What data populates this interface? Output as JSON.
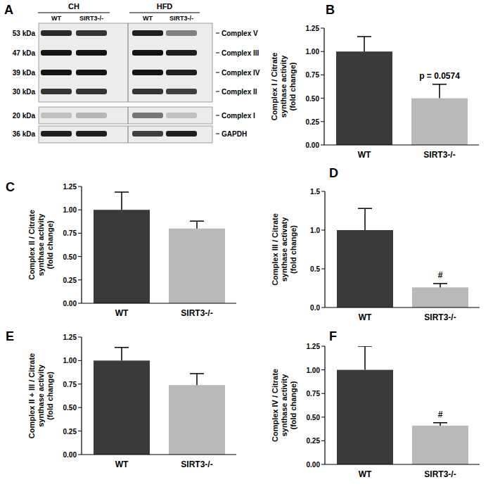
{
  "panel_a": {
    "panel_label": "A",
    "groups": [
      {
        "name": "CH",
        "lanes": [
          "WT",
          "SIRT3-/-"
        ]
      },
      {
        "name": "HFD",
        "lanes": [
          "WT",
          "SIRT3-/-"
        ]
      }
    ],
    "bands": [
      {
        "mw": "53 kDa",
        "name": "Complex V",
        "intensity": [
          0.9,
          0.85,
          0.95,
          0.5
        ]
      },
      {
        "mw": "47 kDa",
        "name": "Complex III",
        "intensity": [
          1.0,
          1.0,
          1.0,
          0.95
        ]
      },
      {
        "mw": "39 kDa",
        "name": "Complex IV",
        "intensity": [
          1.0,
          1.0,
          1.0,
          0.95
        ]
      },
      {
        "mw": "30 kDa",
        "name": "Complex II",
        "intensity": [
          0.85,
          0.85,
          0.85,
          0.8
        ]
      },
      {
        "mw": "20 kDa",
        "name": "Complex I",
        "intensity": [
          0.2,
          0.25,
          0.55,
          0.2
        ]
      },
      {
        "mw": "36 kDa",
        "name": "GAPDH",
        "intensity": [
          0.95,
          0.95,
          0.8,
          0.95
        ]
      }
    ]
  },
  "chart_data": [
    {
      "type": "bar",
      "panel_label": "B",
      "y_label": [
        "Complex I / Citrate",
        "synthase activity",
        "(fold change)"
      ],
      "categories": [
        "WT",
        "SIRT3-/-"
      ],
      "values": [
        1.0,
        0.5
      ],
      "errors": [
        0.16,
        0.15
      ],
      "annotations": [
        null,
        "p = 0.0574"
      ],
      "colors": [
        "#3a3a3a",
        "#b9b9b9"
      ],
      "ylim": [
        0,
        1.25
      ],
      "yticks": [
        {
          "value": 0,
          "label": "0.00"
        },
        {
          "value": 0.25,
          "label": "0.25"
        },
        {
          "value": 0.5,
          "label": "0.50"
        },
        {
          "value": 0.75,
          "label": "0.75"
        },
        {
          "value": 1,
          "label": "1.00"
        },
        {
          "value": 1.25,
          "label": "1.25"
        }
      ]
    },
    {
      "type": "bar",
      "panel_label": "C",
      "y_label": [
        "Complex II / Citrate",
        "synthase activity",
        "(fold change)"
      ],
      "categories": [
        "WT",
        "SIRT3-/-"
      ],
      "values": [
        1.0,
        0.8
      ],
      "errors": [
        0.19,
        0.08
      ],
      "annotations": [
        null,
        null
      ],
      "colors": [
        "#3a3a3a",
        "#b9b9b9"
      ],
      "ylim": [
        0,
        1.25
      ],
      "yticks": [
        {
          "value": 0,
          "label": "0.00"
        },
        {
          "value": 0.25,
          "label": "0.25"
        },
        {
          "value": 0.5,
          "label": "0.50"
        },
        {
          "value": 0.75,
          "label": "0.75"
        },
        {
          "value": 1,
          "label": "1.00"
        },
        {
          "value": 1.25,
          "label": "1.25"
        }
      ]
    },
    {
      "type": "bar",
      "panel_label": "D",
      "y_label": [
        "Complex III / Citrate",
        "synthase activaty",
        "(fold change)"
      ],
      "categories": [
        "WT",
        "SIRT3-/-"
      ],
      "values": [
        1.0,
        0.26
      ],
      "errors": [
        0.28,
        0.05
      ],
      "annotations": [
        null,
        "#"
      ],
      "colors": [
        "#3a3a3a",
        "#b9b9b9"
      ],
      "ylim": [
        0,
        1.5
      ],
      "yticks": [
        {
          "value": 0,
          "label": "0.0"
        },
        {
          "value": 0.5,
          "label": "0.5"
        },
        {
          "value": 1,
          "label": "1.0"
        },
        {
          "value": 1.5,
          "label": "1.5"
        }
      ]
    },
    {
      "type": "bar",
      "panel_label": "E",
      "y_label": [
        "Complex II + III / Citrate",
        "synthase activity",
        "(fold change)"
      ],
      "categories": [
        "WT",
        "SIRT3-/-"
      ],
      "values": [
        1.0,
        0.74
      ],
      "errors": [
        0.14,
        0.12
      ],
      "annotations": [
        null,
        null
      ],
      "colors": [
        "#3a3a3a",
        "#b9b9b9"
      ],
      "ylim": [
        0,
        1.25
      ],
      "yticks": [
        {
          "value": 0,
          "label": "0.00"
        },
        {
          "value": 0.25,
          "label": "0.25"
        },
        {
          "value": 0.5,
          "label": "0.50"
        },
        {
          "value": 0.75,
          "label": "0.75"
        },
        {
          "value": 1,
          "label": "1.00"
        },
        {
          "value": 1.25,
          "label": "1.25"
        }
      ]
    },
    {
      "type": "bar",
      "panel_label": "F",
      "y_label": [
        "Complex IV / Citrate",
        "synthase activity",
        "(fold change)"
      ],
      "categories": [
        "WT",
        "SIRT3-/-"
      ],
      "values": [
        1.0,
        0.41
      ],
      "errors": [
        0.25,
        0.03
      ],
      "annotations": [
        null,
        "#"
      ],
      "colors": [
        "#3a3a3a",
        "#b9b9b9"
      ],
      "ylim": [
        0,
        1.25
      ],
      "yticks": [
        {
          "value": 0,
          "label": "0.00"
        },
        {
          "value": 0.25,
          "label": "0.25"
        },
        {
          "value": 0.5,
          "label": "0.50"
        },
        {
          "value": 0.75,
          "label": "0.75"
        },
        {
          "value": 1,
          "label": "1.00"
        },
        {
          "value": 1.25,
          "label": "1.25"
        }
      ]
    }
  ]
}
